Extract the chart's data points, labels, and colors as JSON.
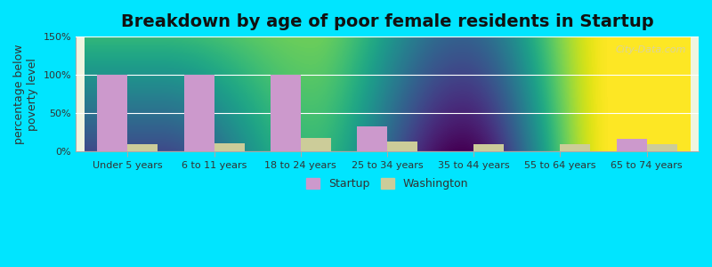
{
  "title": "Breakdown by age of poor female residents in Startup",
  "ylabel": "percentage below\npoverty level",
  "categories": [
    "Under 5 years",
    "6 to 11 years",
    "18 to 24 years",
    "25 to 34 years",
    "35 to 44 years",
    "55 to 64 years",
    "65 to 74 years"
  ],
  "startup_values": [
    100,
    100,
    100,
    33,
    0,
    0,
    17
  ],
  "washington_values": [
    10,
    11,
    18,
    13,
    10,
    10,
    10
  ],
  "startup_color": "#cc99cc",
  "washington_color": "#cccc99",
  "ylim": [
    0,
    150
  ],
  "yticks": [
    0,
    50,
    100,
    150
  ],
  "ytick_labels": [
    "0%",
    "50%",
    "100%",
    "150%"
  ],
  "background_top": "#f0f5e0",
  "background_bottom": "#e8f5e8",
  "outer_background": "#00e5ff",
  "bar_width": 0.35,
  "title_fontsize": 14,
  "axis_label_fontsize": 9,
  "tick_fontsize": 8,
  "legend_fontsize": 9,
  "watermark": "City-Data.com"
}
